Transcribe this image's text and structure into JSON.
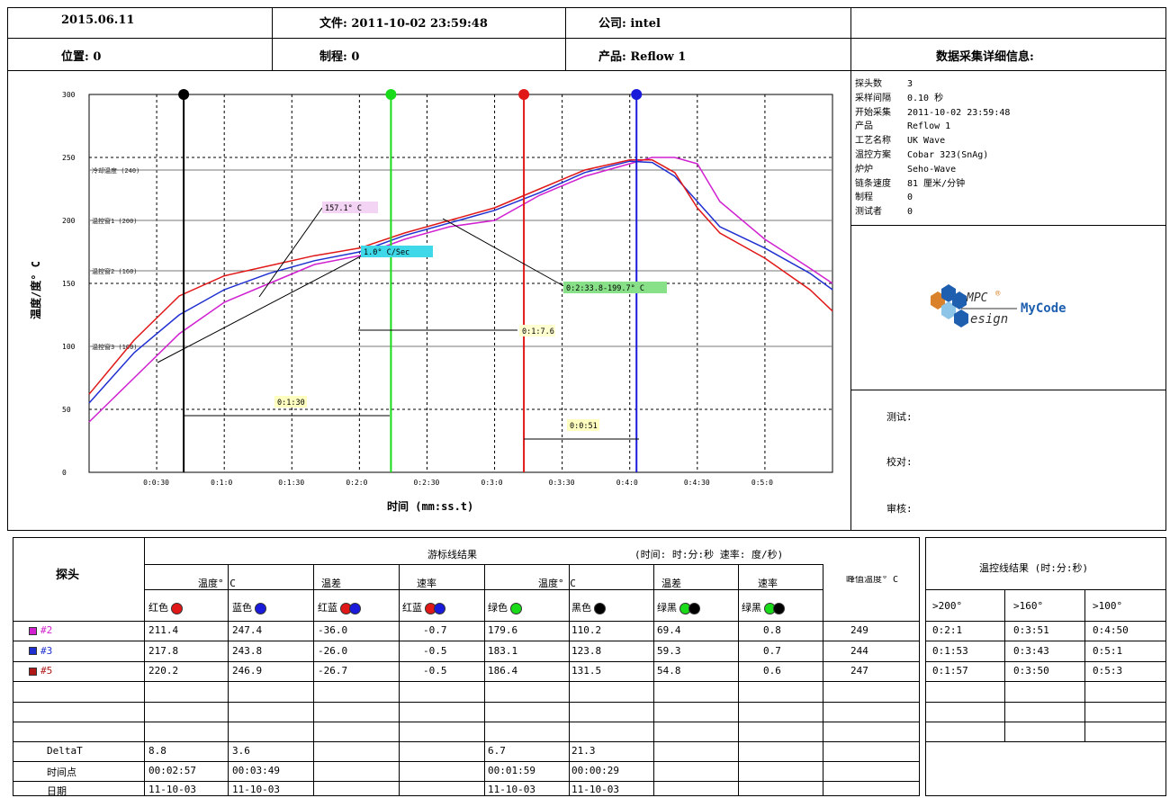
{
  "header": {
    "date": "2015.06.11",
    "file": "文件: 2011-10-02 23:59:48",
    "company": "公司: intel",
    "position": "位置: 0",
    "process": "制程: 0",
    "product": "产品: Reflow 1",
    "details_title": "数据采集详细信息:"
  },
  "info": [
    {
      "key": "探头数",
      "value": "3"
    },
    {
      "key": "采样间隔",
      "value": "0.10 秒"
    },
    {
      "key": "开始采集",
      "value": "2011-10-02 23:59:48"
    },
    {
      "key": "产品",
      "value": "Reflow 1"
    },
    {
      "key": "工艺名称",
      "value": "UK Wave"
    },
    {
      "key": "温控方案",
      "value": "Cobar 323(SnAg)"
    },
    {
      "key": "炉炉",
      "value": "Seho-Wave"
    },
    {
      "key": "链条速度",
      "value": "81 厘米/分钟"
    },
    {
      "key": "制程",
      "value": "0"
    },
    {
      "key": "测试者",
      "value": "0"
    }
  ],
  "logo": {
    "text": "MyCode",
    "sub1": "MPC",
    "sub2": "esign",
    "registered": "®"
  },
  "sign": {
    "test": "测试:",
    "check": "校对:",
    "review": "审核:"
  },
  "chart_data": {
    "type": "line",
    "ylabel": "温度/度° C",
    "xlabel": "时间 (mm:ss.t)",
    "ylim": [
      0,
      300
    ],
    "xlim": [
      0,
      330
    ],
    "yticks": [
      "0",
      "50",
      "100",
      "150",
      "200",
      "250",
      "300"
    ],
    "xticks": [
      "0:0:30",
      "0:1:0",
      "0:1:30",
      "0:2:0",
      "0:2:30",
      "0:3:0",
      "0:3:30",
      "0:4:0",
      "0:4:30",
      "0:5:0"
    ],
    "hlabels": [
      {
        "label": "冷却温度 (240)",
        "y": 240
      },
      {
        "label": "温控窗1 (200)",
        "y": 200
      },
      {
        "label": "温控窗2 (160)",
        "y": 160
      },
      {
        "label": "温控窗3 (100)",
        "y": 100
      }
    ],
    "series": [
      {
        "name": "#2",
        "color": "#d020d0",
        "x": [
          0,
          20,
          40,
          60,
          80,
          100,
          120,
          140,
          160,
          180,
          200,
          220,
          240,
          250,
          260,
          270,
          280,
          300,
          320,
          330
        ],
        "y": [
          40,
          75,
          110,
          135,
          150,
          165,
          172,
          185,
          195,
          200,
          220,
          235,
          245,
          250,
          250,
          245,
          215,
          185,
          162,
          150
        ]
      },
      {
        "name": "#3",
        "color": "#2030d0",
        "x": [
          0,
          20,
          40,
          60,
          80,
          100,
          120,
          140,
          160,
          180,
          200,
          220,
          240,
          250,
          260,
          270,
          280,
          300,
          320,
          330
        ],
        "y": [
          55,
          95,
          125,
          145,
          158,
          168,
          175,
          188,
          198,
          208,
          222,
          238,
          247,
          246,
          235,
          215,
          195,
          178,
          158,
          145
        ]
      },
      {
        "name": "#5",
        "color": "#e01818",
        "x": [
          0,
          20,
          40,
          60,
          80,
          100,
          120,
          140,
          160,
          180,
          200,
          220,
          240,
          250,
          260,
          270,
          280,
          300,
          320,
          330
        ],
        "y": [
          62,
          105,
          140,
          156,
          164,
          172,
          178,
          190,
          200,
          210,
          225,
          240,
          248,
          248,
          238,
          210,
          190,
          170,
          145,
          128
        ]
      }
    ],
    "cursors": [
      {
        "color": "#000000",
        "x": 42
      },
      {
        "color": "#1adb1a",
        "x": 134
      },
      {
        "color": "#e01818",
        "x": 193
      },
      {
        "color": "#1a1adb",
        "x": 243
      }
    ],
    "annotations": [
      {
        "text": "157.1° C",
        "bg": "#f4d4f4"
      },
      {
        "text": "1.0° C/Sec",
        "bg": "#3fd8e8"
      },
      {
        "text": "0:2:33.8-199.7° C",
        "bg": "#88e088"
      },
      {
        "text": "0:1:7.6",
        "bg": "#ffffd0"
      },
      {
        "text": "0:1:30",
        "bg": "#ffffc0"
      },
      {
        "text": "0:0:51",
        "bg": "#ffffc0"
      }
    ]
  },
  "table": {
    "probe_header": "探头",
    "cursor_results": "游标线结果",
    "units_note": "(时间:  时:分:秒  速率: 度/秒)",
    "col_temp1": "温度° C",
    "col_diff1": "温差",
    "col_rate1": "速率",
    "col_temp2": "温度° C",
    "col_diff2": "温差",
    "col_rate2": "速率",
    "col_peak": "峰值温度° C",
    "sub_red": "红色",
    "sub_blue": "蓝色",
    "sub_redblue": "红蓝",
    "sub_green": "绿色",
    "sub_black": "黑色",
    "sub_greenblack": "绿黑",
    "rows": [
      {
        "probe": "#2",
        "color": "#d020d0",
        "v": [
          "211.4",
          "247.4",
          "-36.0",
          "-0.7",
          "179.6",
          "110.2",
          "69.4",
          "0.8",
          "249"
        ]
      },
      {
        "probe": "#3",
        "color": "#2030d0",
        "v": [
          "217.8",
          "243.8",
          "-26.0",
          "-0.5",
          "183.1",
          "123.8",
          "59.3",
          "0.7",
          "244"
        ]
      },
      {
        "probe": "#5",
        "color": "#b01818",
        "v": [
          "220.2",
          "246.9",
          "-26.7",
          "-0.5",
          "186.4",
          "131.5",
          "54.8",
          "0.6",
          "247"
        ]
      }
    ],
    "delta_label": "DeltaT",
    "delta": [
      "8.8",
      "3.6",
      "6.7",
      "21.3"
    ],
    "time_label": "时间点",
    "time": [
      "00:02:57",
      "00:03:49",
      "00:01:59",
      "00:00:29"
    ],
    "date_label": "日期",
    "date": [
      "11-10-03",
      "11-10-03",
      "11-10-03",
      "11-10-03"
    ]
  },
  "temp_results": {
    "title": "温控线结果 (时:分:秒)",
    "headers": [
      ">200°",
      ">160°",
      ">100°"
    ],
    "rows": [
      [
        "0:2:1",
        "0:3:51",
        "0:4:50"
      ],
      [
        "0:1:53",
        "0:3:43",
        "0:5:1"
      ],
      [
        "0:1:57",
        "0:3:50",
        "0:5:3"
      ]
    ]
  }
}
